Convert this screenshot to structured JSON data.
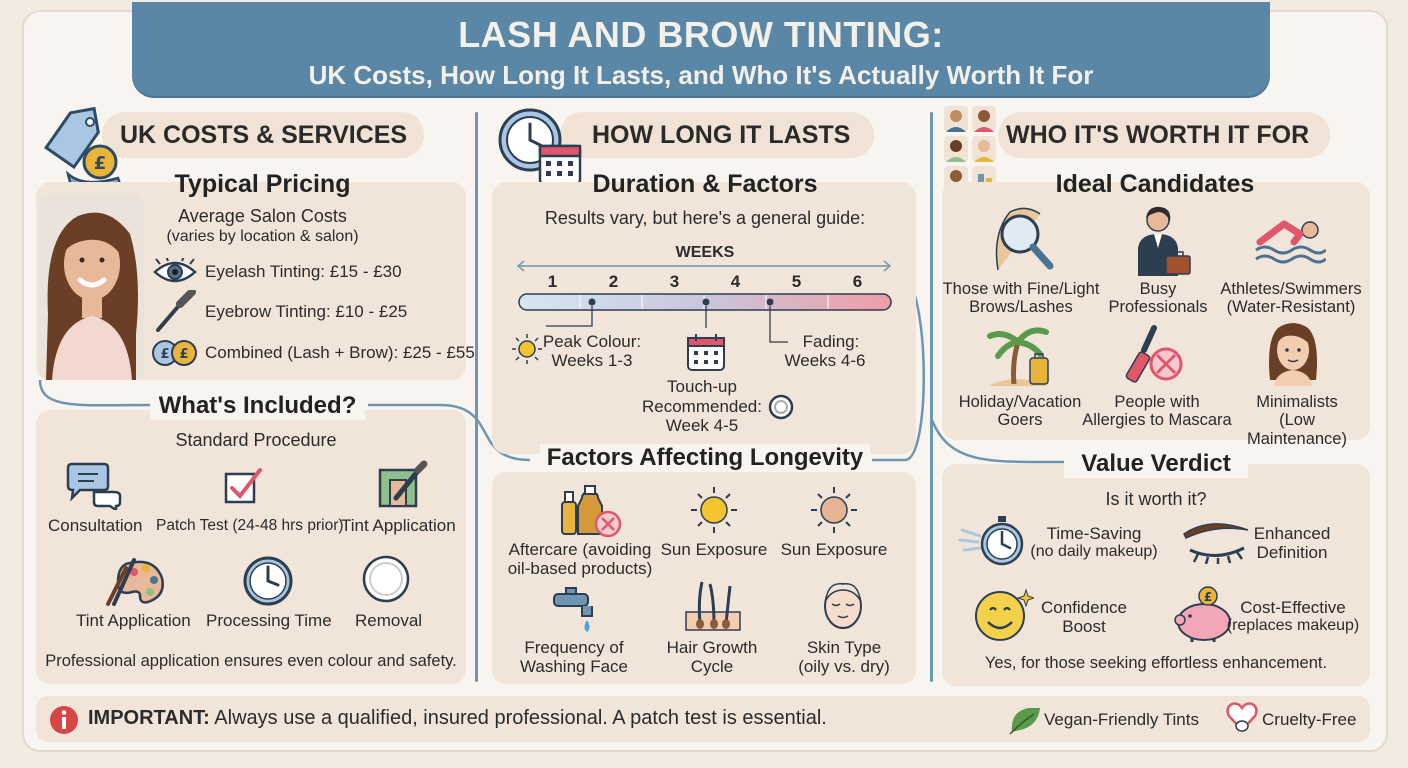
{
  "banner": {
    "title": "LASH AND BROW TINTING:",
    "subtitle": "UK Costs, How Long It Lasts, and Who It's Actually Worth It For"
  },
  "costs": {
    "pill": "UK COSTS & SERVICES",
    "pricing_heading": "Typical Pricing",
    "avg_label": "Average Salon Costs",
    "avg_note": "(varies by location & salon)",
    "prices": [
      {
        "icon": "eye-icon",
        "text": "Eyelash Tinting: £15 - £30"
      },
      {
        "icon": "brow-brush-icon",
        "text": "Eyebrow Tinting: £10 - £25"
      },
      {
        "icon": "pound-coins-icon",
        "text": "Combined (Lash + Brow): £25 - £55"
      }
    ],
    "included_heading": "What's Included?",
    "procedure_label": "Standard Procedure",
    "steps": [
      {
        "icon": "chat-bubbles-icon",
        "label": "Consultation"
      },
      {
        "icon": "checkbox-icon",
        "label": "Patch Test (24-48 hrs prior)"
      },
      {
        "icon": "tint-bottle-icon",
        "label": "Tint Application"
      },
      {
        "icon": "palette-icon",
        "label": "Tint Application"
      },
      {
        "icon": "clock-icon",
        "label": "Processing Time"
      },
      {
        "icon": "cotton-pad-icon",
        "label": "Removal"
      }
    ],
    "footer_note": "Professional application ensures even colour and safety."
  },
  "duration": {
    "pill": "HOW LONG IT LASTS",
    "heading": "Duration & Factors",
    "intro": "Results vary, but here's a general guide:",
    "weeks_label": "WEEKS",
    "weeks": [
      "1",
      "2",
      "3",
      "4",
      "5",
      "6"
    ],
    "peak_line1": "Peak Colour:",
    "peak_line2": "Weeks 1-3",
    "fading_line1": "Fading:",
    "fading_line2": "Weeks 4-6",
    "touchup_line1": "Touch-up",
    "touchup_line2": "Recommended:",
    "touchup_line3": "Week 4-5",
    "factors_heading": "Factors Affecting Longevity",
    "factors": [
      {
        "icon": "aftercare-bottles-icon",
        "line1": "Aftercare (avoiding",
        "line2": "oil-based products)"
      },
      {
        "icon": "sun-icon",
        "line1": "Sun Exposure",
        "line2": ""
      },
      {
        "icon": "sun-pale-icon",
        "line1": "Sun Exposure",
        "line2": ""
      },
      {
        "icon": "tap-icon",
        "line1": "Frequency of",
        "line2": "Washing Face"
      },
      {
        "icon": "hair-follicle-icon",
        "line1": "Hair Growth",
        "line2": "Cycle"
      },
      {
        "icon": "face-icon",
        "line1": "Skin Type",
        "line2": "(oily vs. dry)"
      }
    ]
  },
  "worth": {
    "pill": "WHO IT'S WORTH IT FOR",
    "heading": "Ideal Candidates",
    "candidates": [
      {
        "icon": "magnifier-hair-icon",
        "line1": "Those with Fine/Light",
        "line2": "Brows/Lashes"
      },
      {
        "icon": "professional-icon",
        "line1": "Busy",
        "line2": "Professionals"
      },
      {
        "icon": "swimmer-icon",
        "line1": "Athletes/Swimmers",
        "line2": "(Water-Resistant)"
      },
      {
        "icon": "palm-tree-icon",
        "line1": "Holiday/Vacation",
        "line2": "Goers"
      },
      {
        "icon": "no-mascara-icon",
        "line1": "People with",
        "line2": "Allergies to Mascara"
      },
      {
        "icon": "woman-face-icon",
        "line1": "Minimalists",
        "line2": "(Low Maintenance)"
      }
    ],
    "verdict_heading": "Value Verdict",
    "verdict_question": "Is it worth it?",
    "benefits": [
      {
        "icon": "stopwatch-icon",
        "line1": "Time-Saving",
        "line2": "(no daily makeup)"
      },
      {
        "icon": "eyebrow-lash-icon",
        "line1": "Enhanced",
        "line2": "Definition"
      },
      {
        "icon": "smiley-icon",
        "line1": "Confidence",
        "line2": "Boost"
      },
      {
        "icon": "piggy-bank-icon",
        "line1": "Cost-Effective",
        "line2": "(replaces makeup)"
      }
    ],
    "verdict_answer": "Yes, for those seeking effortless enhancement."
  },
  "footer": {
    "important_label": "IMPORTANT:",
    "important_text": "Always use a qualified, insured professional. A patch test is essential.",
    "vegan": "Vegan-Friendly Tints",
    "cruelty": "Cruelty-Free"
  },
  "colors": {
    "banner": "#5a87a6",
    "card": "#f1e5da",
    "pill": "#f0e3d6",
    "divider": "#6e95b1",
    "timeline_start": "#cfe1f0",
    "timeline_end": "#ef9ea4"
  }
}
